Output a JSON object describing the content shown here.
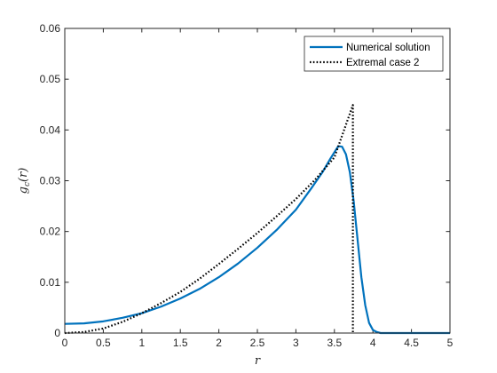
{
  "chart_data": {
    "type": "line",
    "xlabel": "r",
    "ylabel": "g_c(r)",
    "xlim": [
      0,
      5
    ],
    "ylim": [
      0,
      0.06
    ],
    "x_ticks": [
      0,
      0.5,
      1,
      1.5,
      2,
      2.5,
      3,
      3.5,
      4,
      4.5,
      5
    ],
    "x_tick_labels": [
      "0",
      "0.5",
      "1",
      "1.5",
      "2",
      "2.5",
      "3",
      "3.5",
      "4",
      "4.5",
      "5"
    ],
    "y_ticks": [
      0,
      0.01,
      0.02,
      0.03,
      0.04,
      0.05,
      0.06
    ],
    "y_tick_labels": [
      "0",
      "0.01",
      "0.02",
      "0.03",
      "0.04",
      "0.05",
      "0.06"
    ],
    "grid": false,
    "legend_position": "top-right",
    "series": [
      {
        "name": "Numerical solution",
        "color": "#0072BD",
        "style": "solid",
        "x": [
          0,
          0.25,
          0.5,
          0.75,
          1.0,
          1.25,
          1.5,
          1.75,
          2.0,
          2.25,
          2.5,
          2.75,
          3.0,
          3.2,
          3.35,
          3.45,
          3.5,
          3.55,
          3.6,
          3.65,
          3.7,
          3.75,
          3.8,
          3.85,
          3.9,
          3.95,
          4.0,
          4.05,
          4.1,
          4.2,
          4.5,
          5.0
        ],
        "y": [
          0.0018,
          0.0019,
          0.0023,
          0.003,
          0.0039,
          0.0052,
          0.0068,
          0.0087,
          0.011,
          0.0137,
          0.0168,
          0.0203,
          0.0243,
          0.0285,
          0.0318,
          0.0344,
          0.0356,
          0.0368,
          0.0367,
          0.0352,
          0.0317,
          0.026,
          0.0185,
          0.011,
          0.0055,
          0.002,
          0.0006,
          0.0002,
          0.0,
          0.0,
          0.0,
          0.0
        ]
      },
      {
        "name": "Extremal case 2",
        "color": "#000000",
        "style": "dotted",
        "x": [
          0,
          0.25,
          0.5,
          0.75,
          1.0,
          1.25,
          1.5,
          1.75,
          2.0,
          2.25,
          2.5,
          2.75,
          3.0,
          3.25,
          3.5,
          3.74,
          3.74,
          3.75
        ],
        "y": [
          0.0,
          0.0002,
          0.0009,
          0.0022,
          0.0039,
          0.0059,
          0.0081,
          0.0107,
          0.0136,
          0.0166,
          0.0197,
          0.023,
          0.0264,
          0.0302,
          0.0346,
          0.0449,
          0.0,
          0.0
        ]
      }
    ]
  }
}
